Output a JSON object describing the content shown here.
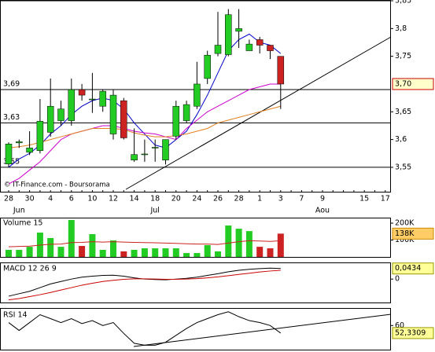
{
  "chart_data": [
    {
      "type": "candlestick",
      "copyright": "© IT-Finance.com - Boursorama",
      "categories": [
        "28",
        null,
        "30",
        null,
        "4",
        null,
        "6",
        null,
        "10",
        null,
        "12",
        null,
        "14",
        null,
        "18",
        null,
        "20",
        null,
        "24",
        null,
        "26",
        null,
        "28",
        null,
        "1",
        null,
        "3",
        null,
        "7",
        null,
        "9",
        null,
        null,
        null,
        "15",
        null,
        "17"
      ],
      "months": [
        null,
        "Jun",
        null,
        null,
        null,
        null,
        null,
        null,
        null,
        null,
        null,
        null,
        null,
        null,
        "Jul",
        null,
        null,
        null,
        null,
        null,
        null,
        null,
        null,
        null,
        null,
        null,
        null,
        null,
        null,
        null,
        "Aou",
        null,
        null,
        null,
        null,
        null,
        null
      ],
      "open": [
        3.556,
        3.594,
        3.577,
        3.58,
        3.613,
        3.634,
        3.634,
        3.69,
        3.672,
        3.66,
        3.61,
        3.67,
        3.563,
        3.573,
        3.585,
        3.563,
        3.606,
        3.634,
        3.66,
        3.71,
        3.755,
        3.753,
        3.795,
        3.76,
        3.78,
        3.77,
        3.75,
        null,
        null,
        null,
        null,
        null,
        null,
        null,
        null,
        null,
        null
      ],
      "high": [
        3.595,
        3.6,
        3.615,
        3.673,
        3.71,
        3.67,
        3.71,
        3.7,
        3.72,
        3.69,
        3.69,
        3.675,
        3.62,
        3.6,
        3.6,
        3.6,
        3.67,
        3.67,
        3.74,
        3.76,
        3.83,
        3.835,
        3.835,
        3.78,
        3.785,
        3.77,
        3.75,
        null,
        null,
        null,
        null,
        null,
        null,
        null,
        null,
        null,
        null
      ],
      "low": [
        3.55,
        3.585,
        3.572,
        3.575,
        3.605,
        3.625,
        3.625,
        3.67,
        3.648,
        3.65,
        3.6,
        3.6,
        3.56,
        3.56,
        3.56,
        3.555,
        3.6,
        3.63,
        3.655,
        3.7,
        3.75,
        3.75,
        3.765,
        3.76,
        3.755,
        3.745,
        3.655,
        null,
        null,
        null,
        null,
        null,
        null,
        null,
        null,
        null,
        null
      ],
      "close": [
        3.592,
        3.596,
        3.585,
        3.633,
        3.66,
        3.655,
        3.69,
        3.68,
        3.673,
        3.687,
        3.68,
        3.603,
        3.573,
        3.574,
        3.586,
        3.6,
        3.66,
        3.663,
        3.7,
        3.752,
        3.77,
        3.825,
        3.8,
        3.772,
        3.77,
        3.76,
        3.7,
        null,
        null,
        null,
        null,
        null,
        null,
        null,
        null,
        null,
        null
      ],
      "up_color": "#22cc22",
      "down_color": "#cc2222",
      "series": [
        {
          "color": "#0000cc",
          "values": [
            3.55,
            3.565,
            3.575,
            3.59,
            3.61,
            3.625,
            3.645,
            3.66,
            3.67,
            3.675,
            3.67,
            3.655,
            3.63,
            3.61,
            3.59,
            3.585,
            3.6,
            3.615,
            3.645,
            3.68,
            3.72,
            3.76,
            3.78,
            3.79,
            3.775,
            3.77,
            3.755,
            null,
            null,
            null,
            null,
            null,
            null,
            null,
            null,
            null,
            null
          ]
        },
        {
          "color": "#cc00cc",
          "values": [
            3.52,
            3.53,
            3.545,
            3.56,
            3.58,
            3.6,
            3.61,
            3.615,
            3.62,
            3.625,
            3.625,
            3.62,
            3.615,
            3.612,
            3.61,
            3.605,
            3.6,
            3.62,
            3.635,
            3.65,
            3.66,
            3.67,
            3.68,
            3.69,
            3.695,
            3.7,
            3.7,
            null,
            null,
            null,
            null,
            null,
            null,
            null,
            null,
            null,
            null
          ]
        },
        {
          "color": "#e08020",
          "values": [
            3.585,
            3.587,
            3.59,
            3.595,
            3.6,
            3.605,
            3.61,
            3.615,
            3.62,
            3.62,
            3.62,
            3.618,
            3.612,
            3.608,
            3.605,
            3.605,
            3.607,
            3.61,
            3.615,
            3.62,
            3.63,
            3.635,
            3.64,
            3.645,
            3.65,
            3.655,
            3.66,
            null,
            null,
            null,
            null,
            null,
            null,
            null,
            null,
            null,
            null
          ]
        }
      ],
      "levels": [
        {
          "value": 3.85,
          "label": ""
        },
        {
          "value": 3.69,
          "label": "3,69"
        },
        {
          "value": 3.63,
          "label": "3,63"
        },
        {
          "value": 3.55,
          "label": "3,55"
        }
      ],
      "last_label": "3,70",
      "ylim": [
        3.506,
        3.85
      ],
      "yticks": [
        {
          "value": 3.85,
          "label": "3,85"
        },
        {
          "value": 3.8,
          "label": "3,8"
        },
        {
          "value": 3.75,
          "label": "3,75"
        },
        {
          "value": 3.65,
          "label": "3,65"
        },
        {
          "value": 3.6,
          "label": "3,6"
        },
        {
          "value": 3.55,
          "label": "3,55"
        }
      ]
    },
    {
      "type": "bar",
      "title": "Volume 15",
      "values": [
        42000,
        42000,
        60000,
        144000,
        112000,
        60000,
        219000,
        65000,
        135000,
        42000,
        98000,
        33000,
        42000,
        51000,
        51000,
        51000,
        51000,
        23000,
        23000,
        70000,
        33000,
        186000,
        167000,
        153000,
        60000,
        51000,
        138000
      ],
      "series": [
        {
          "color": "#cc2222",
          "values": [
            60000,
            62000,
            64000,
            70000,
            75000,
            76000,
            85000,
            86000,
            90000,
            88000,
            90000,
            88000,
            86000,
            85000,
            84000,
            82000,
            80000,
            78000,
            76000,
            76000,
            74000,
            82000,
            90000,
            96000,
            94000,
            92000,
            96000
          ]
        }
      ],
      "last_label": "138K",
      "ylim": [
        0,
        228000
      ],
      "yticks": [
        {
          "value": 200000,
          "label": "200K"
        },
        {
          "value": 100000,
          "label": "100K"
        }
      ]
    },
    {
      "type": "line",
      "title": "MACD 12 26 9",
      "series": [
        {
          "color": "#000000",
          "values": [
            -0.07,
            -0.06,
            -0.05,
            -0.035,
            -0.02,
            -0.01,
            0.0,
            0.008,
            0.012,
            0.015,
            0.016,
            0.012,
            0.005,
            0.0,
            -0.002,
            -0.003,
            0.0,
            0.003,
            0.008,
            0.015,
            0.022,
            0.03,
            0.036,
            0.04,
            0.043,
            0.045,
            0.0434
          ]
        },
        {
          "color": "#cc0000",
          "values": [
            -0.085,
            -0.08,
            -0.072,
            -0.064,
            -0.055,
            -0.045,
            -0.035,
            -0.025,
            -0.017,
            -0.01,
            -0.005,
            -0.001,
            0.001,
            0.001,
            0.0,
            -0.001,
            -0.001,
            0.0,
            0.002,
            0.005,
            0.009,
            0.014,
            0.019,
            0.024,
            0.029,
            0.033,
            0.036
          ]
        }
      ],
      "last_label": "0,0434",
      "ylim": [
        -0.096,
        0.065
      ],
      "yticks": [
        0
      ]
    },
    {
      "type": "line",
      "title": "RSI 14",
      "series": [
        {
          "color": "#000000",
          "values": [
            63,
            55,
            63,
            71,
            67,
            63,
            67,
            62,
            65,
            60,
            63,
            52,
            42,
            40,
            40,
            43,
            50,
            57,
            63,
            67,
            71,
            74,
            69,
            65,
            63,
            60,
            52.3309
          ]
        }
      ],
      "last_label": "52,3309",
      "ylim": [
        35.5,
        77
      ],
      "yticks": [
        60
      ]
    }
  ]
}
